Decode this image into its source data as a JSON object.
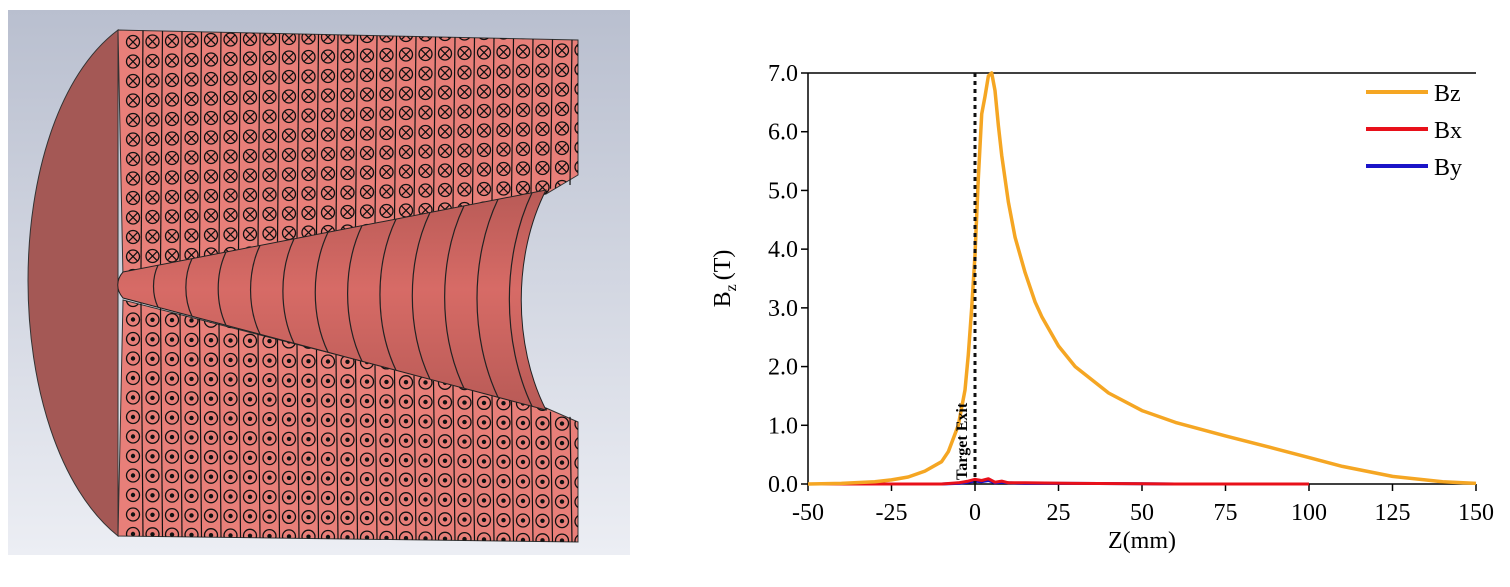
{
  "colors": {
    "background_gradient_top": "#b9bfcf",
    "background_gradient_bottom": "#eceef4",
    "magnet_face": "#e87f79",
    "magnet_side": "#a45855",
    "bore_surface": "#d76b66",
    "winding_lines": "#111111",
    "bz": "#f5a623",
    "bx": "#e8101a",
    "by": "#1a14c8",
    "marker_line": "#111111"
  },
  "render": {
    "upper_current_symbol": "circle-cross-icon",
    "lower_current_symbol": "circle-dot-icon"
  },
  "chart_data": {
    "type": "line",
    "title": "",
    "xlabel": "Z(mm)",
    "ylabel_main": "B",
    "ylabel_sub": "z",
    "ylabel_unit": "(T)",
    "xlim": [
      -50,
      150
    ],
    "ylim": [
      0,
      7
    ],
    "xticks": [
      -50,
      -25,
      0,
      25,
      50,
      75,
      100,
      125,
      150
    ],
    "xtick_labels": [
      "-50",
      "-25",
      "0",
      "25",
      "50",
      "75",
      "100",
      "125",
      "150"
    ],
    "yticks": [
      0,
      1,
      2,
      3,
      4,
      5,
      6,
      7
    ],
    "ytick_labels": [
      "0.0",
      "1.0",
      "2.0",
      "3.0",
      "4.0",
      "5.0",
      "6.0",
      "7.0"
    ],
    "grid": false,
    "legend_position": "top-right",
    "annotation": {
      "text": "Target Exit",
      "x": 0
    },
    "series": [
      {
        "name": "Bz",
        "color": "#f5a623",
        "x": [
          -50,
          -40,
          -30,
          -25,
          -20,
          -15,
          -10,
          -8,
          -5,
          -3,
          -2,
          -1,
          0,
          1,
          2,
          3,
          4,
          5,
          6,
          7,
          8,
          10,
          12,
          15,
          18,
          20,
          25,
          30,
          40,
          50,
          60,
          75,
          90,
          100,
          110,
          125,
          140,
          150
        ],
        "y": [
          0.0,
          0.01,
          0.04,
          0.07,
          0.12,
          0.22,
          0.38,
          0.55,
          1.0,
          1.6,
          2.2,
          3.0,
          3.9,
          5.2,
          6.3,
          6.6,
          6.95,
          7.0,
          6.7,
          6.1,
          5.6,
          4.8,
          4.2,
          3.6,
          3.1,
          2.85,
          2.35,
          2.0,
          1.55,
          1.25,
          1.05,
          0.82,
          0.6,
          0.45,
          0.3,
          0.13,
          0.04,
          0.01
        ]
      },
      {
        "name": "Bx",
        "color": "#e8101a",
        "x": [
          -50,
          -10,
          -5,
          -2,
          0,
          2,
          4,
          6,
          8,
          10,
          15,
          30,
          60,
          100
        ],
        "y": [
          0.0,
          0.0,
          0.02,
          0.05,
          0.08,
          0.06,
          0.09,
          0.03,
          0.05,
          0.02,
          0.02,
          0.01,
          0.0,
          0.0
        ]
      },
      {
        "name": "By",
        "color": "#1a14c8",
        "x": [
          -50,
          -10,
          -5,
          -2,
          0,
          2,
          4,
          6,
          8,
          10,
          15,
          30,
          60,
          100
        ],
        "y": [
          0.0,
          0.0,
          0.01,
          0.03,
          0.05,
          0.04,
          0.06,
          0.02,
          0.03,
          0.02,
          0.01,
          0.01,
          0.0,
          0.0
        ]
      }
    ]
  }
}
